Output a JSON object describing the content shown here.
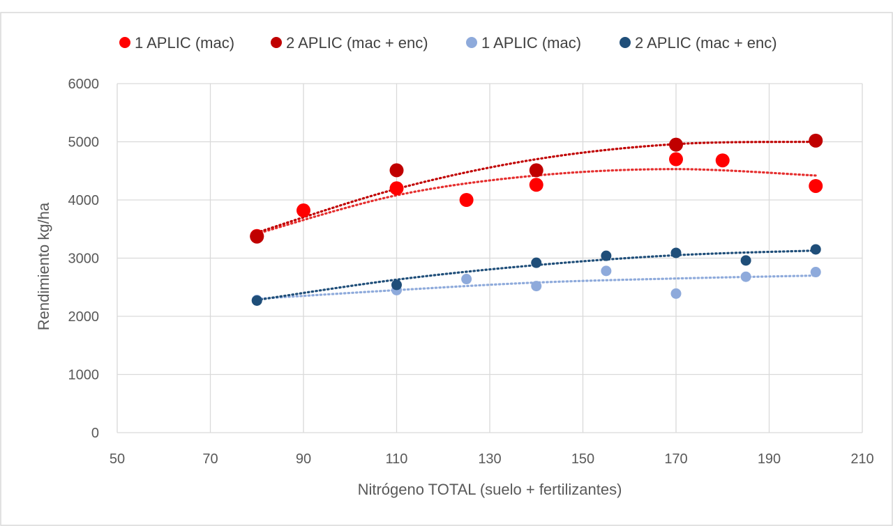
{
  "chart_data": {
    "type": "scatter",
    "title": "",
    "xlabel": "Nitrógeno TOTAL (suelo + fertilizantes)",
    "ylabel": "Rendimiento kg/ha",
    "xlim": [
      50,
      210
    ],
    "ylim": [
      0,
      6000
    ],
    "x_ticks": [
      50,
      70,
      90,
      110,
      130,
      150,
      170,
      190,
      210
    ],
    "y_ticks": [
      0,
      1000,
      2000,
      3000,
      4000,
      5000,
      6000
    ],
    "grid": true,
    "legend_position": "top",
    "series": [
      {
        "name": "1 APLIC (mac)",
        "color": "#ff0000",
        "trendline_color": "#e52e2e",
        "marker_size": "large",
        "points": [
          {
            "x": 80,
            "y": 3380
          },
          {
            "x": 90,
            "y": 3820
          },
          {
            "x": 110,
            "y": 4200
          },
          {
            "x": 125,
            "y": 4000
          },
          {
            "x": 140,
            "y": 4260
          },
          {
            "x": 170,
            "y": 4700
          },
          {
            "x": 180,
            "y": 4680
          },
          {
            "x": 200,
            "y": 4240
          }
        ],
        "trendline": {
          "type": "polynomial",
          "points": [
            [
              80,
              3420
            ],
            [
              110,
              4080
            ],
            [
              140,
              4420
            ],
            [
              170,
              4530
            ],
            [
              200,
              4420
            ]
          ]
        }
      },
      {
        "name": "2 APLIC (mac + enc)",
        "color": "#c00000",
        "trendline_color": "#c00000",
        "marker_size": "large",
        "points": [
          {
            "x": 80,
            "y": 3370
          },
          {
            "x": 110,
            "y": 4510
          },
          {
            "x": 140,
            "y": 4510
          },
          {
            "x": 170,
            "y": 4950
          },
          {
            "x": 200,
            "y": 5020
          }
        ],
        "trendline": {
          "type": "polynomial",
          "points": [
            [
              80,
              3440
            ],
            [
              110,
              4190
            ],
            [
              140,
              4700
            ],
            [
              170,
              4960
            ],
            [
              200,
              5000
            ]
          ]
        }
      },
      {
        "name": "1 APLIC (mac)",
        "color": "#8eaadb",
        "trendline_color": "#8eaadb",
        "marker_size": "small",
        "points": [
          {
            "x": 80,
            "y": 2280
          },
          {
            "x": 110,
            "y": 2450
          },
          {
            "x": 125,
            "y": 2640
          },
          {
            "x": 140,
            "y": 2520
          },
          {
            "x": 155,
            "y": 2780
          },
          {
            "x": 170,
            "y": 2390
          },
          {
            "x": 185,
            "y": 2680
          },
          {
            "x": 200,
            "y": 2760
          }
        ],
        "trendline": {
          "type": "logarithmic",
          "points": [
            [
              80,
              2300
            ],
            [
              110,
              2450
            ],
            [
              140,
              2580
            ],
            [
              170,
              2650
            ],
            [
              200,
              2700
            ]
          ]
        }
      },
      {
        "name": "2 APLIC (mac + enc)",
        "color": "#1f4e79",
        "trendline_color": "#1f4e79",
        "marker_size": "small",
        "points": [
          {
            "x": 80,
            "y": 2270
          },
          {
            "x": 110,
            "y": 2540
          },
          {
            "x": 140,
            "y": 2920
          },
          {
            "x": 155,
            "y": 3040
          },
          {
            "x": 170,
            "y": 3090
          },
          {
            "x": 185,
            "y": 2960
          },
          {
            "x": 200,
            "y": 3150
          }
        ],
        "trendline": {
          "type": "polynomial",
          "points": [
            [
              80,
              2280
            ],
            [
              110,
              2630
            ],
            [
              140,
              2880
            ],
            [
              170,
              3050
            ],
            [
              200,
              3130
            ]
          ]
        }
      }
    ]
  }
}
